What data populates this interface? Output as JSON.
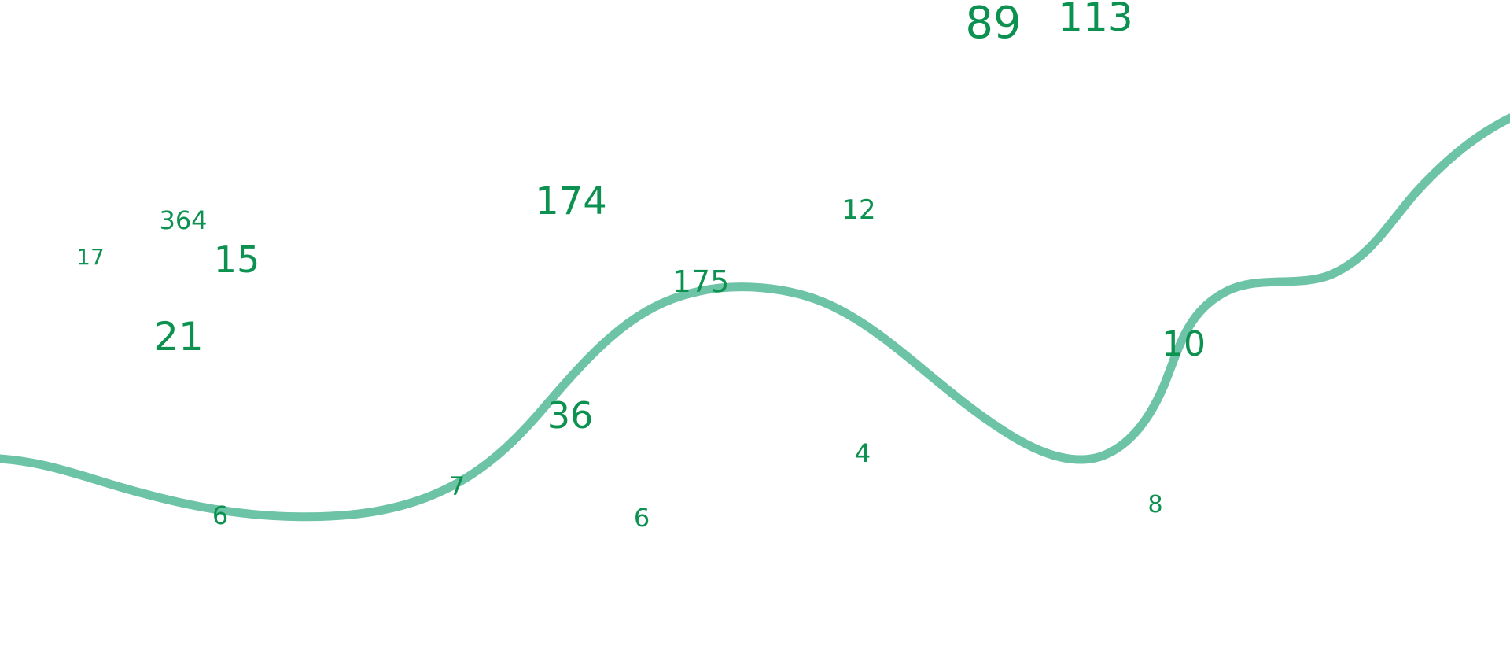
{
  "colors": {
    "numbers": "#0c9150",
    "curve": "#6cc3a5",
    "background": "#ffffff"
  },
  "numbers": [
    {
      "text": "89"
    },
    {
      "text": "113"
    },
    {
      "text": "364"
    },
    {
      "text": "174"
    },
    {
      "text": "12"
    },
    {
      "text": "17"
    },
    {
      "text": "15"
    },
    {
      "text": "175"
    },
    {
      "text": "21"
    },
    {
      "text": "10"
    },
    {
      "text": "36"
    },
    {
      "text": "4"
    },
    {
      "text": "7"
    },
    {
      "text": "6"
    },
    {
      "text": "6"
    },
    {
      "text": "8"
    }
  ]
}
